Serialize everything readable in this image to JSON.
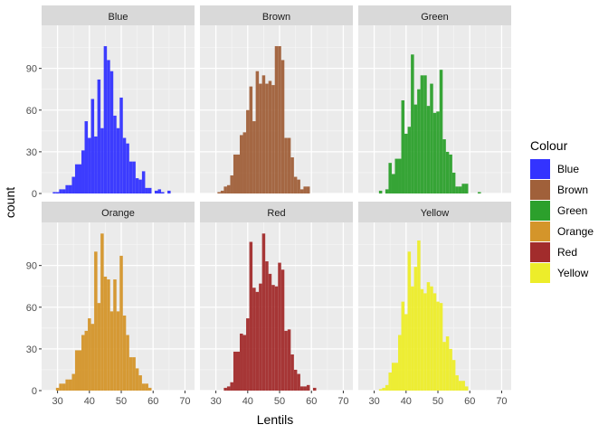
{
  "chart_data": {
    "type": "bar",
    "xlabel": "Lentils",
    "ylabel": "count",
    "xlim": [
      25,
      73
    ],
    "ylim": [
      0,
      121
    ],
    "x_ticks": [
      30,
      40,
      50,
      60,
      70
    ],
    "y_ticks": [
      0,
      30,
      60,
      90
    ],
    "bin_width": 1,
    "bins": [
      26,
      27,
      28,
      29,
      30,
      31,
      32,
      33,
      34,
      35,
      36,
      37,
      38,
      39,
      40,
      41,
      42,
      43,
      44,
      45,
      46,
      47,
      48,
      49,
      50,
      51,
      52,
      53,
      54,
      55,
      56,
      57,
      58,
      59,
      60,
      61,
      62,
      63,
      64,
      65,
      66,
      67,
      68,
      69,
      70
    ],
    "legend": {
      "title": "Colour",
      "position": "right"
    },
    "grid": true,
    "panels": [
      {
        "name": "Blue",
        "color": "#3333ff",
        "values": [
          0,
          0,
          0,
          1,
          1,
          3,
          3,
          6,
          6,
          12,
          21,
          21,
          31,
          52,
          40,
          68,
          41,
          82,
          47,
          106,
          96,
          88,
          56,
          47,
          69,
          40,
          36,
          23,
          23,
          11,
          10,
          16,
          4,
          4,
          0,
          2,
          3,
          1,
          0,
          2,
          0,
          0,
          0,
          0,
          0
        ]
      },
      {
        "name": "Brown",
        "color": "#a0603a",
        "values": [
          0,
          0,
          0,
          0,
          0,
          1,
          2,
          5,
          6,
          13,
          28,
          28,
          42,
          44,
          60,
          77,
          52,
          88,
          79,
          85,
          79,
          81,
          78,
          106,
          106,
          96,
          40,
          40,
          26,
          12,
          10,
          3,
          5,
          5,
          0,
          0,
          0,
          0,
          0,
          0,
          0,
          0,
          0,
          0,
          0
        ]
      },
      {
        "name": "Green",
        "color": "#2ca02c",
        "values": [
          0,
          0,
          0,
          0,
          0,
          0,
          2,
          0,
          3,
          22,
          14,
          25,
          25,
          67,
          43,
          48,
          100,
          64,
          75,
          85,
          85,
          63,
          79,
          58,
          59,
          89,
          39,
          30,
          28,
          15,
          5,
          5,
          7,
          7,
          0,
          0,
          0,
          1,
          0,
          0,
          0,
          0,
          0,
          0,
          0
        ]
      },
      {
        "name": "Orange",
        "color": "#d4952a",
        "values": [
          0,
          0,
          0,
          0,
          2,
          5,
          5,
          8,
          8,
          12,
          29,
          29,
          40,
          43,
          52,
          48,
          100,
          63,
          113,
          82,
          80,
          57,
          80,
          57,
          97,
          54,
          40,
          24,
          24,
          16,
          11,
          5,
          5,
          2,
          0,
          0,
          0,
          0,
          0,
          0,
          0,
          0,
          0,
          0,
          0
        ]
      },
      {
        "name": "Red",
        "color": "#a22c2c",
        "values": [
          0,
          0,
          0,
          0,
          0,
          0,
          0,
          2,
          3,
          6,
          28,
          28,
          41,
          40,
          52,
          107,
          74,
          71,
          77,
          113,
          93,
          84,
          76,
          75,
          92,
          87,
          43,
          44,
          26,
          15,
          12,
          3,
          3,
          4,
          0,
          2,
          0,
          0,
          0,
          0,
          0,
          0,
          0,
          0,
          0
        ]
      },
      {
        "name": "Yellow",
        "color": "#eded2a",
        "values": [
          0,
          0,
          0,
          0,
          0,
          0,
          1,
          2,
          4,
          13,
          20,
          20,
          40,
          64,
          55,
          100,
          75,
          89,
          108,
          73,
          70,
          78,
          75,
          70,
          64,
          63,
          35,
          39,
          30,
          22,
          11,
          7,
          7,
          3,
          0,
          0,
          0,
          0,
          0,
          0,
          0,
          0,
          0,
          0,
          0
        ]
      }
    ]
  }
}
